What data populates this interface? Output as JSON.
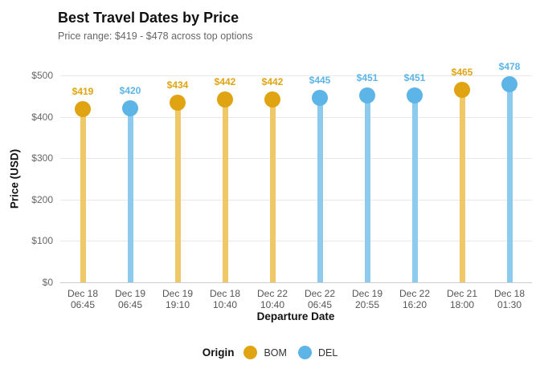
{
  "header": {
    "title": "Best Travel Dates by Price",
    "subtitle": "Price range: $419 - $478 across top options"
  },
  "chart_data": {
    "type": "scatter",
    "style": "lollipop",
    "title": "Best Travel Dates by Price",
    "subtitle": "Price range: $419 - $478 across top options",
    "xlabel": "Departure Date",
    "ylabel": "Price (USD)",
    "ylim": [
      0,
      500
    ],
    "grid": true,
    "yticks": [
      {
        "value": 0,
        "label": "$0"
      },
      {
        "value": 100,
        "label": "$100"
      },
      {
        "value": 200,
        "label": "$200"
      },
      {
        "value": 300,
        "label": "$300"
      },
      {
        "value": 400,
        "label": "$400"
      },
      {
        "value": 500,
        "label": "$500"
      }
    ],
    "series_colors": {
      "BOM": "#e0a412",
      "DEL": "#5cb5e6"
    },
    "stem_colors": {
      "BOM": "#efc868",
      "DEL": "#8ccaee"
    },
    "points": [
      {
        "date": "Dec 18",
        "time": "06:45",
        "price": 419,
        "label": "$419",
        "origin": "BOM"
      },
      {
        "date": "Dec 19",
        "time": "06:45",
        "price": 420,
        "label": "$420",
        "origin": "DEL"
      },
      {
        "date": "Dec 19",
        "time": "19:10",
        "price": 434,
        "label": "$434",
        "origin": "BOM"
      },
      {
        "date": "Dec 18",
        "time": "10:40",
        "price": 442,
        "label": "$442",
        "origin": "BOM"
      },
      {
        "date": "Dec 22",
        "time": "10:40",
        "price": 442,
        "label": "$442",
        "origin": "BOM"
      },
      {
        "date": "Dec 22",
        "time": "06:45",
        "price": 445,
        "label": "$445",
        "origin": "DEL"
      },
      {
        "date": "Dec 19",
        "time": "20:55",
        "price": 451,
        "label": "$451",
        "origin": "DEL"
      },
      {
        "date": "Dec 22",
        "time": "16:20",
        "price": 451,
        "label": "$451",
        "origin": "DEL"
      },
      {
        "date": "Dec 21",
        "time": "18:00",
        "price": 465,
        "label": "$465",
        "origin": "BOM"
      },
      {
        "date": "Dec 18",
        "time": "01:30",
        "price": 478,
        "label": "$478",
        "origin": "DEL"
      }
    ],
    "legend": {
      "title": "Origin",
      "position": "bottom",
      "entries": [
        {
          "label": "BOM",
          "color": "#e0a412"
        },
        {
          "label": "DEL",
          "color": "#5cb5e6"
        }
      ]
    }
  }
}
